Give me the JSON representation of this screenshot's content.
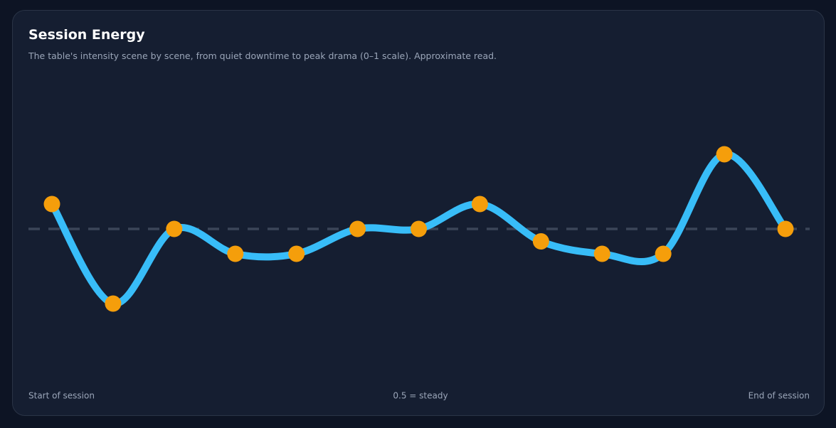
{
  "chart_data": {
    "type": "line",
    "title": "Session Energy",
    "subtitle": "The table's intensity scene by scene, from quiet downtime to peak drama (0–1 scale). Approximate read.",
    "categories": [
      null,
      null,
      null,
      null,
      null,
      null,
      null,
      null,
      null,
      null,
      null,
      null,
      null
    ],
    "series": [
      {
        "name": "Energy",
        "color": "#38bdf8",
        "marker_color": "#f59e0b",
        "values": [
          0.6,
          0.2,
          0.5,
          0.4,
          0.4,
          0.5,
          0.5,
          0.6,
          0.45,
          0.4,
          0.4,
          0.8,
          0.5
        ]
      }
    ],
    "ylim": [
      0,
      1
    ],
    "reference_line": {
      "value": 0.5,
      "label": "0.5 = steady",
      "color": "#3b4558"
    },
    "start_label": "Start of session",
    "end_label": "End of session"
  }
}
